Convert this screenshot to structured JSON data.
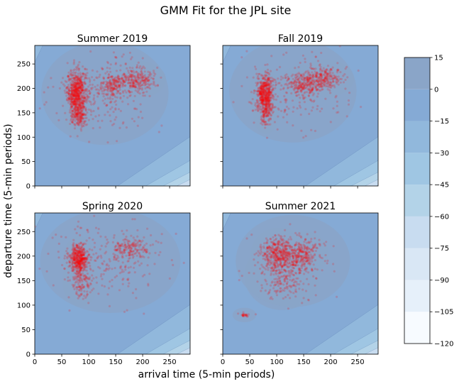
{
  "figure": {
    "title": "GMM Fit for the JPL site",
    "xlabel": "arrival time (5-min periods)",
    "ylabel": "departure time (5-min periods)"
  },
  "colorbar": {
    "ticks": [
      15,
      0,
      -15,
      -30,
      -45,
      -60,
      -75,
      -90,
      -105,
      -120
    ],
    "levels": [
      -120,
      -105,
      -90,
      -75,
      -60,
      -45,
      -30,
      -15,
      0,
      15
    ],
    "colors": [
      "#f7fbff",
      "#e6f0fa",
      "#d9e7f5",
      "#c8dcf0",
      "#b3d3e8",
      "#9fc6e3",
      "#91b8dc",
      "#85aad5",
      "#8aa5c8"
    ]
  },
  "chart_data": [
    {
      "type": "scatter",
      "title": "Summer 2019",
      "xlim": [
        0,
        288
      ],
      "ylim": [
        0,
        288
      ],
      "xticks": [
        0,
        50,
        100,
        150,
        200,
        250
      ],
      "yticks": [
        0,
        50,
        100,
        150,
        200,
        250
      ],
      "clusters": [
        {
          "cx": 78,
          "cy": 192,
          "sx": 9,
          "sy": 22,
          "n": 650
        },
        {
          "cx": 82,
          "cy": 142,
          "sx": 8,
          "sy": 12,
          "n": 160
        },
        {
          "cx": 145,
          "cy": 205,
          "sx": 12,
          "sy": 12,
          "n": 180
        },
        {
          "cx": 190,
          "cy": 218,
          "sx": 18,
          "sy": 12,
          "n": 240
        },
        {
          "cx": 130,
          "cy": 190,
          "sx": 45,
          "sy": 40,
          "n": 220
        }
      ]
    },
    {
      "type": "scatter",
      "title": "Fall 2019",
      "xlim": [
        0,
        288
      ],
      "ylim": [
        0,
        288
      ],
      "xticks": [
        0,
        50,
        100,
        150,
        200,
        250
      ],
      "yticks": [
        0,
        50,
        100,
        150,
        200,
        250
      ],
      "clusters": [
        {
          "cx": 78,
          "cy": 190,
          "sx": 8,
          "sy": 18,
          "n": 500
        },
        {
          "cx": 80,
          "cy": 150,
          "sx": 6,
          "sy": 14,
          "n": 130
        },
        {
          "cx": 150,
          "cy": 210,
          "sx": 14,
          "sy": 12,
          "n": 200
        },
        {
          "cx": 190,
          "cy": 220,
          "sx": 18,
          "sy": 12,
          "n": 240
        },
        {
          "cx": 130,
          "cy": 195,
          "sx": 45,
          "sy": 40,
          "n": 200
        }
      ]
    },
    {
      "type": "scatter",
      "title": "Spring 2020",
      "xlim": [
        0,
        288
      ],
      "ylim": [
        0,
        288
      ],
      "xticks": [
        0,
        50,
        100,
        150,
        200,
        250
      ],
      "yticks": [
        0,
        50,
        100,
        150,
        200,
        250
      ],
      "clusters": [
        {
          "cx": 82,
          "cy": 195,
          "sx": 8,
          "sy": 15,
          "n": 450
        },
        {
          "cx": 85,
          "cy": 150,
          "sx": 10,
          "sy": 18,
          "n": 130
        },
        {
          "cx": 175,
          "cy": 215,
          "sx": 18,
          "sy": 10,
          "n": 160
        },
        {
          "cx": 140,
          "cy": 190,
          "sx": 50,
          "sy": 40,
          "n": 220
        }
      ]
    },
    {
      "type": "scatter",
      "title": "Summer 2021",
      "xlim": [
        0,
        288
      ],
      "ylim": [
        0,
        288
      ],
      "xticks": [
        0,
        50,
        100,
        150,
        200,
        250
      ],
      "yticks": [
        0,
        50,
        100,
        150,
        200,
        250
      ],
      "clusters": [
        {
          "cx": 105,
          "cy": 205,
          "sx": 18,
          "sy": 18,
          "n": 420
        },
        {
          "cx": 150,
          "cy": 205,
          "sx": 15,
          "sy": 15,
          "n": 200
        },
        {
          "cx": 110,
          "cy": 160,
          "sx": 25,
          "sy": 25,
          "n": 200
        },
        {
          "cx": 40,
          "cy": 80,
          "sx": 5,
          "sy": 2,
          "n": 25
        },
        {
          "cx": 130,
          "cy": 190,
          "sx": 40,
          "sy": 35,
          "n": 120
        }
      ]
    }
  ]
}
